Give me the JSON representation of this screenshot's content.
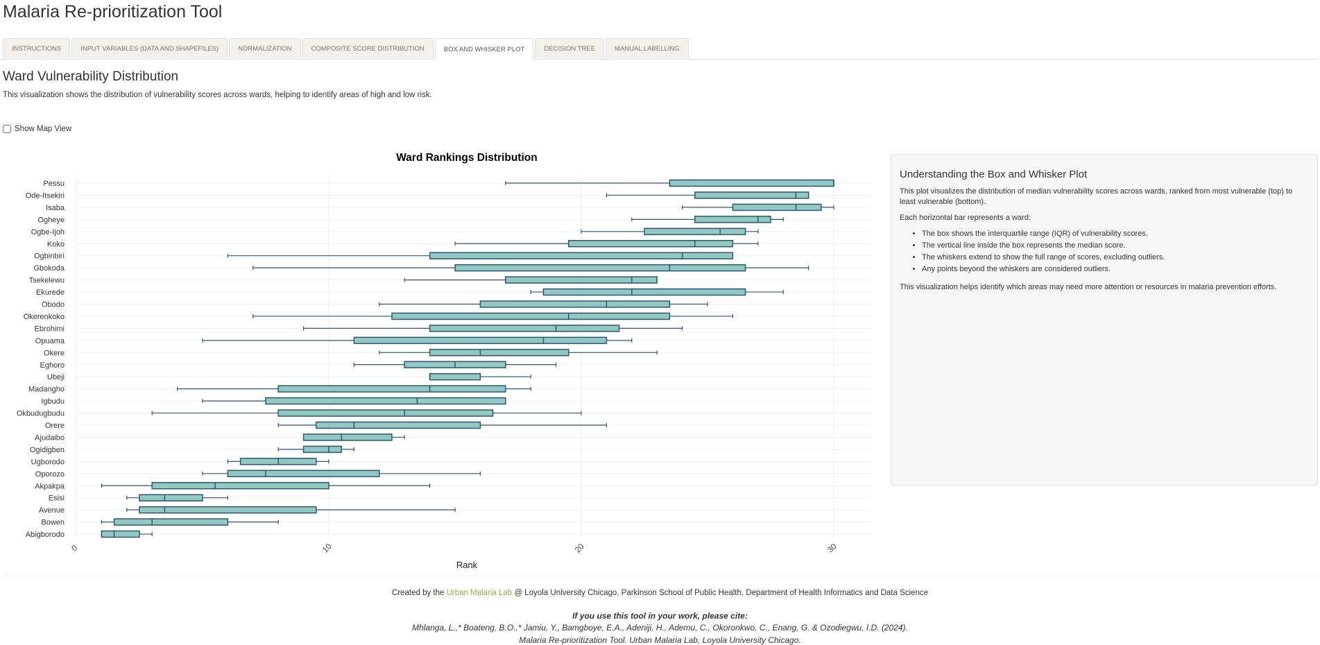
{
  "app_title": "Malaria Re-prioritization Tool",
  "tabs": [
    {
      "label": "INSTRUCTIONS",
      "active": false
    },
    {
      "label": "INPUT VARIABLES (DATA AND SHAPEFILES)",
      "active": false
    },
    {
      "label": "NORMALIZATION",
      "active": false
    },
    {
      "label": "COMPOSITE SCORE DISTRIBUTION",
      "active": false
    },
    {
      "label": "BOX AND WHISKER PLOT",
      "active": true
    },
    {
      "label": "DECISION TREE",
      "active": false
    },
    {
      "label": "MANUAL LABELLING",
      "active": false
    }
  ],
  "section": {
    "title": "Ward Vulnerability Distribution",
    "description": "This visualization shows the distribution of vulnerability scores across wards, helping to identify areas of high and low risk."
  },
  "map_toggle": {
    "label": "Show Map View",
    "checked": false
  },
  "colors": {
    "box_fill": "#93c8c0",
    "box_stroke": "#2e5578",
    "grid": "#eeeeee",
    "accent_link": "#8bb14b"
  },
  "chart_data": {
    "type": "box",
    "orientation": "horizontal",
    "title": "Ward Rankings Distribution",
    "xlabel": "Rank",
    "ylabel": "",
    "xlim": [
      0,
      31.5
    ],
    "xticks": [
      0,
      10,
      20,
      30
    ],
    "grid": true,
    "series": [
      {
        "ward": "Pessu",
        "min": 17,
        "q1": 23.5,
        "median": 30,
        "q3": 30,
        "max": 30
      },
      {
        "ward": "Ode-Itsekiri",
        "min": 21,
        "q1": 24.5,
        "median": 28.5,
        "q3": 29,
        "max": 29
      },
      {
        "ward": "Isaba",
        "min": 24,
        "q1": 26,
        "median": 28.5,
        "q3": 29.5,
        "max": 30
      },
      {
        "ward": "Ogheye",
        "min": 22,
        "q1": 24.5,
        "median": 27,
        "q3": 27.5,
        "max": 28
      },
      {
        "ward": "Ogbe-Ijoh",
        "min": 20,
        "q1": 22.5,
        "median": 25.5,
        "q3": 26.5,
        "max": 27
      },
      {
        "ward": "Koko",
        "min": 15,
        "q1": 19.5,
        "median": 24.5,
        "q3": 26,
        "max": 27
      },
      {
        "ward": "Ogbinbiri",
        "min": 6,
        "q1": 14,
        "median": 24,
        "q3": 26,
        "max": 26
      },
      {
        "ward": "Gbokoda",
        "min": 7,
        "q1": 15,
        "median": 23.5,
        "q3": 26.5,
        "max": 29
      },
      {
        "ward": "Tsekelewu",
        "min": 13,
        "q1": 17,
        "median": 22,
        "q3": 23,
        "max": 23
      },
      {
        "ward": "Ekurede",
        "min": 18,
        "q1": 18.5,
        "median": 22,
        "q3": 26.5,
        "max": 28
      },
      {
        "ward": "Obodo",
        "min": 12,
        "q1": 16,
        "median": 21,
        "q3": 23.5,
        "max": 25
      },
      {
        "ward": "Okerenkoko",
        "min": 7,
        "q1": 12.5,
        "median": 19.5,
        "q3": 23.5,
        "max": 26
      },
      {
        "ward": "Ebrohimi",
        "min": 9,
        "q1": 14,
        "median": 19,
        "q3": 21.5,
        "max": 24
      },
      {
        "ward": "Opuama",
        "min": 5,
        "q1": 11,
        "median": 18.5,
        "q3": 21,
        "max": 22
      },
      {
        "ward": "Okere",
        "min": 12,
        "q1": 14,
        "median": 16,
        "q3": 19.5,
        "max": 23
      },
      {
        "ward": "Eghoro",
        "min": 11,
        "q1": 13,
        "median": 15,
        "q3": 17,
        "max": 19
      },
      {
        "ward": "Ubeji",
        "min": 14,
        "q1": 14,
        "median": 14,
        "q3": 16,
        "max": 18
      },
      {
        "ward": "Madangho",
        "min": 4,
        "q1": 8,
        "median": 14,
        "q3": 17,
        "max": 18
      },
      {
        "ward": "Igbudu",
        "min": 5,
        "q1": 7.5,
        "median": 13.5,
        "q3": 17,
        "max": 17
      },
      {
        "ward": "Okbudugbudu",
        "min": 3,
        "q1": 8,
        "median": 13,
        "q3": 16.5,
        "max": 20
      },
      {
        "ward": "Orere",
        "min": 8,
        "q1": 9.5,
        "median": 11,
        "q3": 16,
        "max": 21
      },
      {
        "ward": "Ajudaibo",
        "min": 9,
        "q1": 9,
        "median": 10.5,
        "q3": 12.5,
        "max": 13
      },
      {
        "ward": "Ogidigben",
        "min": 8,
        "q1": 9,
        "median": 10,
        "q3": 10.5,
        "max": 11
      },
      {
        "ward": "Ugborodo",
        "min": 6,
        "q1": 6.5,
        "median": 8,
        "q3": 9.5,
        "max": 10
      },
      {
        "ward": "Oporozo",
        "min": 5,
        "q1": 6,
        "median": 7.5,
        "q3": 12,
        "max": 16
      },
      {
        "ward": "Akpakpa",
        "min": 1,
        "q1": 3,
        "median": 5.5,
        "q3": 10,
        "max": 14
      },
      {
        "ward": "Esisi",
        "min": 2,
        "q1": 2.5,
        "median": 3.5,
        "q3": 5,
        "max": 6
      },
      {
        "ward": "Avenue",
        "min": 2,
        "q1": 2.5,
        "median": 3.5,
        "q3": 9.5,
        "max": 15
      },
      {
        "ward": "Bowen",
        "min": 1,
        "q1": 1.5,
        "median": 3,
        "q3": 6,
        "max": 8
      },
      {
        "ward": "Abigborodo",
        "min": 1,
        "q1": 1,
        "median": 1.5,
        "q3": 2.5,
        "max": 3
      }
    ]
  },
  "info_panel": {
    "title": "Understanding the Box and Whisker Plot",
    "intro": "This plot visualizes the distribution of median vulnerability scores across wards, ranked from most vulnerable (top) to least vulnerable (bottom).",
    "bar_note": "Each horizontal bar represents a ward:",
    "bullets": [
      "The box shows the interquartile range (IQR) of vulnerability scores.",
      "The vertical line inside the box represents the median score.",
      "The whiskers extend to show the full range of scores, excluding outliers.",
      "Any points beyond the whiskers are considered outliers."
    ],
    "closing": "This visualization helps identify which areas may need more attention or resources in malaria prevention efforts."
  },
  "footer": {
    "created_prefix": "Created by the",
    "lab_name": "Urban Malaria Lab",
    "created_suffix": "@ Loyola University Chicago, Parkinson School of Public Health, Department of Health Informatics and Data Science",
    "cite_heading": "If you use this tool in your work, please cite:",
    "cite_line1": "Mhlanga, L.,* Boateng, B.O.,* Jamiu, Y., Bamgboye, E.A., Adeniji, H., Ademu, C., Okoronkwo, C., Enang, G. & Ozodiegwu, I.D. (2024).",
    "cite_line2": "Malaria Re-prioritization Tool. Urban Malaria Lab, Loyola University Chicago."
  }
}
